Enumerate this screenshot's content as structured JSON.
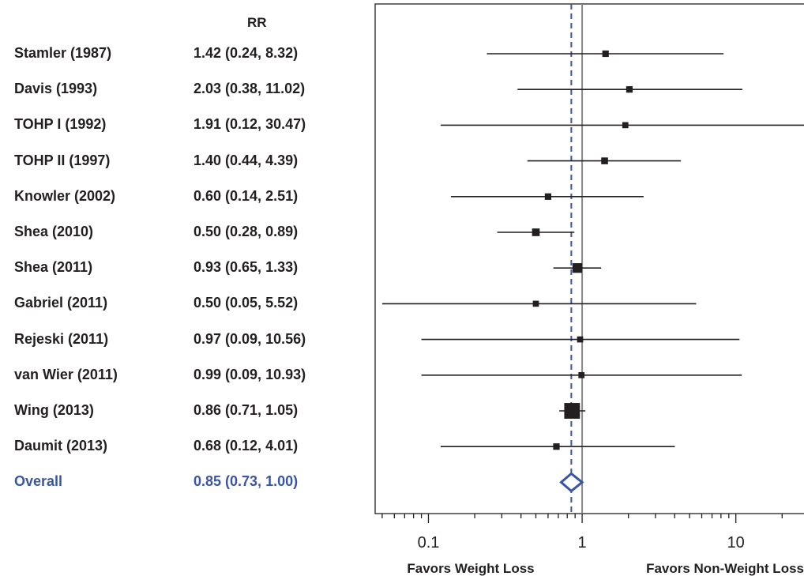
{
  "chart_data": {
    "type": "forest",
    "column_header": "RR",
    "studies": [
      {
        "name": "Stamler (1987)",
        "rr_text": "1.42 (0.24, 8.32)",
        "rr": 1.42,
        "lo": 0.24,
        "hi": 8.32,
        "weight": 0.5
      },
      {
        "name": "Davis (1993)",
        "rr_text": "2.03 (0.38, 11.02)",
        "rr": 2.03,
        "lo": 0.38,
        "hi": 11.02,
        "weight": 0.5
      },
      {
        "name": "TOHP I (1992)",
        "rr_text": "1.91 (0.12, 30.47)",
        "rr": 1.91,
        "lo": 0.12,
        "hi": 30.47,
        "weight": 0.3
      },
      {
        "name": "TOHP II (1997)",
        "rr_text": "1.40 (0.44, 4.39)",
        "rr": 1.4,
        "lo": 0.44,
        "hi": 4.39,
        "weight": 0.7
      },
      {
        "name": "Knowler (2002)",
        "rr_text": "0.60 (0.14, 2.51)",
        "rr": 0.6,
        "lo": 0.14,
        "hi": 2.51,
        "weight": 0.5
      },
      {
        "name": "Shea (2010)",
        "rr_text": "0.50 (0.28, 0.89)",
        "rr": 0.5,
        "lo": 0.28,
        "hi": 0.89,
        "weight": 1.4
      },
      {
        "name": "Shea (2011)",
        "rr_text": "0.93 (0.65, 1.33)",
        "rr": 0.93,
        "lo": 0.65,
        "hi": 1.33,
        "weight": 4.0
      },
      {
        "name": "Gabriel (2011)",
        "rr_text": "0.50 (0.05, 5.52)",
        "rr": 0.5,
        "lo": 0.05,
        "hi": 5.52,
        "weight": 0.3
      },
      {
        "name": "Rejeski (2011)",
        "rr_text": "0.97 (0.09, 10.56)",
        "rr": 0.97,
        "lo": 0.09,
        "hi": 10.56,
        "weight": 0.3
      },
      {
        "name": "van Wier (2011)",
        "rr_text": "0.99 (0.09, 10.93)",
        "rr": 0.99,
        "lo": 0.09,
        "hi": 10.93,
        "weight": 0.3
      },
      {
        "name": "Wing (2013)",
        "rr_text": "0.86 (0.71, 1.05)",
        "rr": 0.86,
        "lo": 0.71,
        "hi": 1.05,
        "weight": 20.0
      },
      {
        "name": "Daumit (2013)",
        "rr_text": "0.68 (0.12, 4.01)",
        "rr": 0.68,
        "lo": 0.12,
        "hi": 4.01,
        "weight": 0.5
      }
    ],
    "overall": {
      "name": "Overall",
      "rr_text": "0.85 (0.73, 1.00)",
      "rr": 0.85,
      "lo": 0.73,
      "hi": 1.0
    },
    "x_scale": "log",
    "xlim": [
      0.045,
      32
    ],
    "x_ticks": [
      {
        "value": 0.1,
        "label": "0.1"
      },
      {
        "value": 1,
        "label": "1"
      },
      {
        "value": 10,
        "label": "10"
      }
    ],
    "reference_line": 1,
    "direction_labels": {
      "left": "Favors Weight Loss",
      "right": "Favors Non-Weight Loss"
    },
    "colors": {
      "text": "#231f20",
      "overall": "#3a55a4",
      "reference": "#888888",
      "frame": "#231f20"
    }
  }
}
